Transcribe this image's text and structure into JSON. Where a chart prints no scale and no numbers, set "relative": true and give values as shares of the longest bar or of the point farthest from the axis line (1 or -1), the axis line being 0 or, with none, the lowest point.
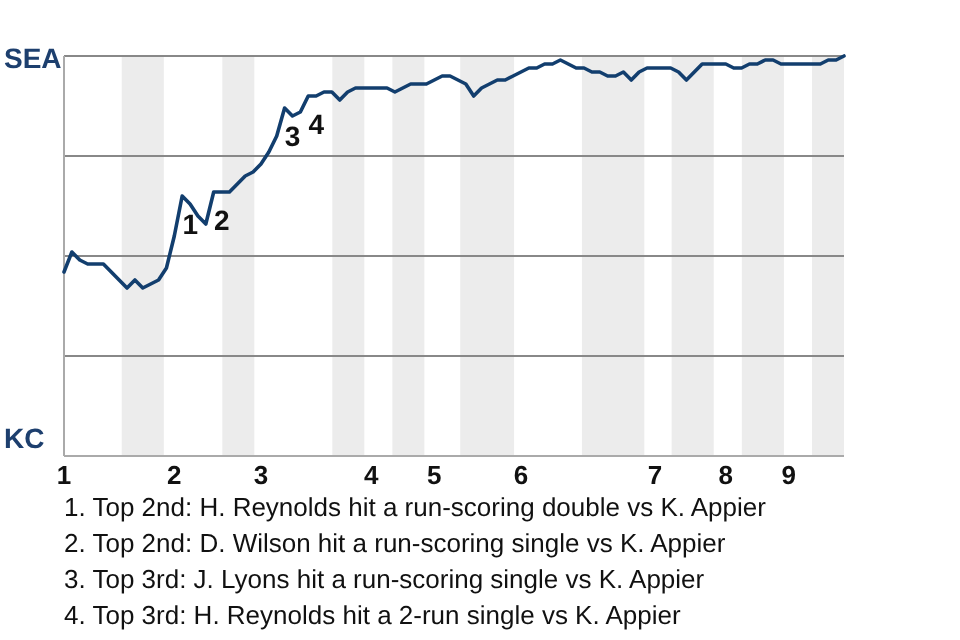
{
  "chart_data": {
    "type": "line",
    "relative": true,
    "categories": [
      "1",
      null,
      null,
      null,
      null,
      null,
      null,
      null,
      null,
      null,
      null,
      null,
      null,
      null,
      "2",
      null,
      null,
      null,
      null,
      null,
      null,
      null,
      null,
      null,
      null,
      "3",
      null,
      null,
      null,
      null,
      null,
      null,
      null,
      null,
      null,
      null,
      null,
      null,
      null,
      "4",
      null,
      null,
      null,
      null,
      null,
      null,
      null,
      "5",
      null,
      null,
      null,
      null,
      null,
      null,
      null,
      null,
      null,
      null,
      "6",
      null,
      null,
      null,
      null,
      null,
      null,
      null,
      null,
      null,
      null,
      null,
      null,
      null,
      null,
      null,
      null,
      "7",
      null,
      null,
      null,
      null,
      null,
      null,
      null,
      null,
      "8",
      null,
      null,
      null,
      null,
      null,
      null,
      null,
      "9",
      null,
      null,
      null,
      null,
      null,
      null,
      null
    ],
    "ref_lines": [
      {
        "axis": "y",
        "value": 0.25,
        "color": "#888888"
      },
      {
        "axis": "y",
        "value": 0.5,
        "color": "#888888"
      },
      {
        "axis": "y",
        "value": 0.75,
        "color": "#888888"
      },
      {
        "axis": "y",
        "value": 1,
        "color": "#888888"
      }
    ],
    "series": [
      {
        "color": "#123e6e",
        "values": [
          0.46,
          0.51,
          0.49,
          0.48,
          0.48,
          0.48,
          0.46,
          0.44,
          0.42,
          0.44,
          0.42,
          0.43,
          0.44,
          0.47,
          0.55,
          0.65,
          0.63,
          0.6,
          0.58,
          0.66,
          0.66,
          0.66,
          0.68,
          0.7,
          0.71,
          0.73,
          0.76,
          0.8,
          0.87,
          0.85,
          0.86,
          0.9,
          0.9,
          0.91,
          0.91,
          0.89,
          0.91,
          0.92,
          0.92,
          0.92,
          0.92,
          0.92,
          0.91,
          0.92,
          0.93,
          0.93,
          0.93,
          0.94,
          0.95,
          0.95,
          0.94,
          0.93,
          0.9,
          0.92,
          0.93,
          0.94,
          0.94,
          0.95,
          0.96,
          0.97,
          0.97,
          0.98,
          0.98,
          0.99,
          0.98,
          0.97,
          0.97,
          0.96,
          0.96,
          0.95,
          0.95,
          0.96,
          0.94,
          0.96,
          0.97,
          0.97,
          0.97,
          0.97,
          0.96,
          0.94,
          0.96,
          0.98,
          0.98,
          0.98,
          0.98,
          0.97,
          0.97,
          0.98,
          0.98,
          0.99,
          0.99,
          0.98,
          0.98,
          0.98,
          0.98,
          0.98,
          0.98,
          0.99,
          0.99,
          1.0
        ]
      }
    ],
    "annotations": [
      "SEA",
      "KC",
      {
        "text": "1",
        "y": 0.65
      },
      {
        "text": "2",
        "y": 0.66
      },
      {
        "text": "3",
        "y": 0.87
      },
      {
        "text": "4",
        "y": 0.9
      },
      "1. Top 2nd: H. Reynolds hit a run-scoring double vs K. Appier",
      "2. Top 2nd: D. Wilson hit a run-scoring single vs K. Appier",
      "3. Top 3rd: J. Lyons hit a run-scoring single vs K. Appier",
      "4. Top 3rd: H. Reynolds hit a 2-run single vs K. Appier"
    ]
  }
}
